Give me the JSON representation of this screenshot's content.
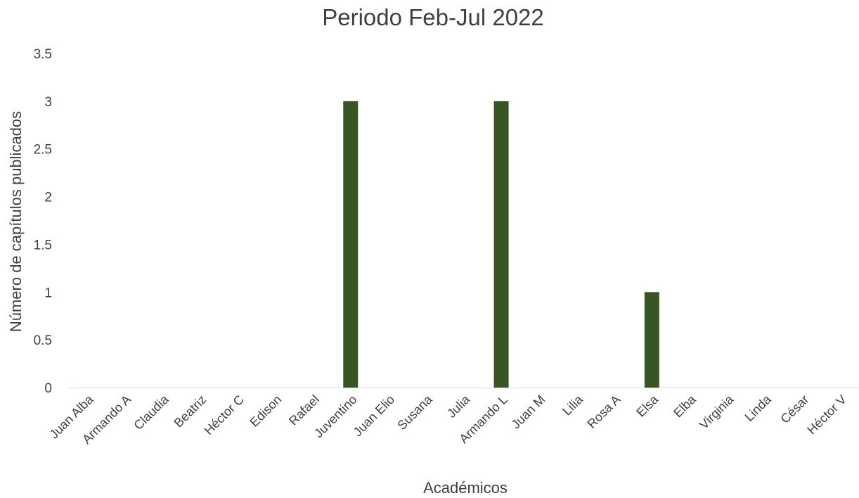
{
  "chart_data": {
    "type": "bar",
    "title": "Periodo Feb-Jul 2022",
    "xlabel": "Académicos",
    "ylabel": "Número de capítulos publicados",
    "categories": [
      "Juan Alba",
      "Armando A",
      "Claudia",
      "Beatriz",
      "Héctor C",
      "Edison",
      "Rafael",
      "Juventino",
      "Juan Elio",
      "Susana",
      "Julia",
      "Armando L",
      "Juan M",
      "Lilia",
      "Rosa A",
      "Elsa",
      "Elba",
      "Virginia",
      "Linda",
      "César",
      "Héctor V"
    ],
    "values": [
      0,
      0,
      0,
      0,
      0,
      0,
      0,
      3,
      0,
      0,
      0,
      3,
      0,
      0,
      0,
      1,
      0,
      0,
      0,
      0,
      0
    ],
    "ylim": [
      0,
      3.5
    ],
    "yticks": [
      "0",
      "0.5",
      "1",
      "1.5",
      "2",
      "2.5",
      "3",
      "3.5"
    ],
    "bar_color": "#375623",
    "axis_color": "#d9d9d9",
    "text_color": "#404040",
    "grid": false,
    "legend": "none"
  }
}
